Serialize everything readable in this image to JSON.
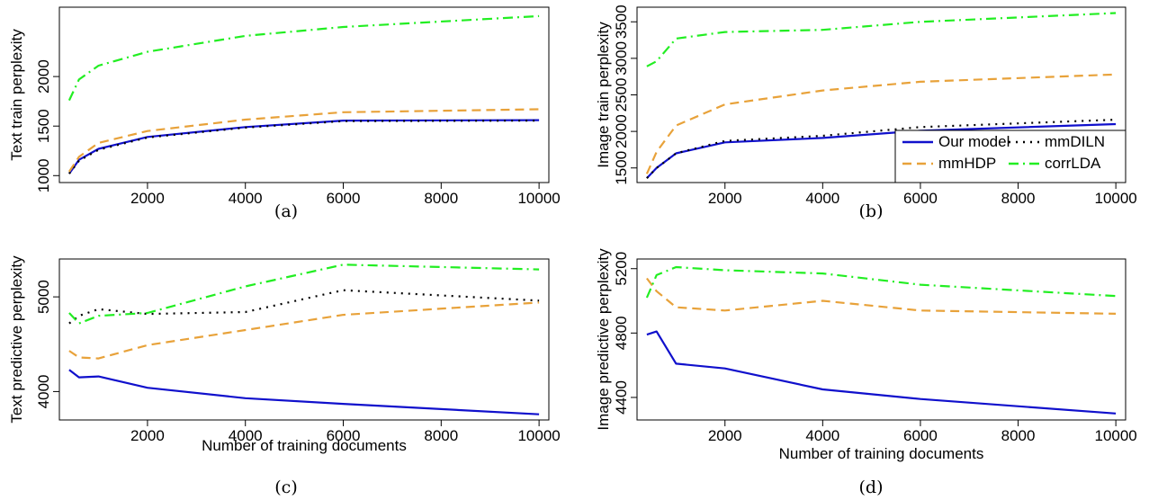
{
  "chart_data": [
    {
      "type": "line",
      "panel": "(a)",
      "caption": "(a)",
      "xlabel": "",
      "ylabel": "Text train perplexity",
      "xlim": [
        200,
        10200
      ],
      "ylim": [
        930,
        2700
      ],
      "xticks": [
        2000,
        4000,
        6000,
        8000,
        10000
      ],
      "yticks": [
        1000,
        1500,
        2000
      ],
      "x": [
        400,
        600,
        1000,
        2000,
        4000,
        6000,
        10000
      ],
      "series": [
        {
          "name": "Our model",
          "color": "#1010cc",
          "values": [
            1020,
            1160,
            1270,
            1390,
            1490,
            1555,
            1560
          ]
        },
        {
          "name": "mmDILN",
          "color": "#000000",
          "values": [
            1020,
            1150,
            1260,
            1385,
            1485,
            1550,
            1555
          ]
        },
        {
          "name": "mmHDP",
          "color": "#e8a23a",
          "values": [
            1040,
            1190,
            1330,
            1450,
            1565,
            1640,
            1670
          ]
        },
        {
          "name": "corrLDA",
          "color": "#22ee22",
          "values": [
            1760,
            1970,
            2110,
            2250,
            2410,
            2500,
            2610
          ]
        }
      ]
    },
    {
      "type": "line",
      "panel": "(b)",
      "caption": "(b)",
      "xlabel": "",
      "ylabel": "Image train perplexity",
      "xlim": [
        200,
        10200
      ],
      "ylim": [
        1300,
        3700
      ],
      "xticks": [
        2000,
        4000,
        6000,
        8000,
        10000
      ],
      "yticks": [
        1500,
        2000,
        2500,
        3000,
        3500
      ],
      "x": [
        400,
        600,
        1000,
        2000,
        4000,
        6000,
        10000
      ],
      "series": [
        {
          "name": "Our model",
          "color": "#1010cc",
          "values": [
            1360,
            1500,
            1700,
            1850,
            1910,
            2010,
            2100
          ]
        },
        {
          "name": "mmDILN",
          "color": "#000000",
          "values": [
            1360,
            1500,
            1700,
            1870,
            1940,
            2060,
            2160
          ]
        },
        {
          "name": "mmHDP",
          "color": "#e8a23a",
          "values": [
            1420,
            1720,
            2080,
            2370,
            2560,
            2680,
            2780
          ]
        },
        {
          "name": "corrLDA",
          "color": "#22ee22",
          "values": [
            2890,
            2960,
            3270,
            3360,
            3390,
            3500,
            3620
          ]
        }
      ],
      "legend": {
        "placement": "bottom-right",
        "entries": [
          {
            "label": "Our model",
            "series": "Our model"
          },
          {
            "label": "mmDILN",
            "series": "mmDILN"
          },
          {
            "label": "mmHDP",
            "series": "mmHDP"
          },
          {
            "label": "corrLDA",
            "series": "corrLDA"
          }
        ]
      }
    },
    {
      "type": "line",
      "panel": "(c)",
      "caption": "(c)",
      "xlabel": "Number of training documents",
      "ylabel": "Text predictive perplexity",
      "xlim": [
        200,
        10200
      ],
      "ylim": [
        3700,
        5400
      ],
      "xticks": [
        2000,
        4000,
        6000,
        8000,
        10000
      ],
      "yticks": [
        4000,
        5000
      ],
      "x": [
        400,
        600,
        1000,
        2000,
        4000,
        6000,
        10000
      ],
      "series": [
        {
          "name": "Our model",
          "color": "#1010cc",
          "values": [
            4230,
            4150,
            4160,
            4040,
            3930,
            3870,
            3760
          ]
        },
        {
          "name": "mmDILN",
          "color": "#000000",
          "values": [
            4720,
            4800,
            4870,
            4820,
            4840,
            5070,
            4960
          ]
        },
        {
          "name": "mmHDP",
          "color": "#e8a23a",
          "values": [
            4430,
            4360,
            4350,
            4490,
            4650,
            4810,
            4940
          ]
        },
        {
          "name": "corrLDA",
          "color": "#22ee22",
          "values": [
            4830,
            4720,
            4800,
            4830,
            5110,
            5340,
            5290
          ]
        }
      ]
    },
    {
      "type": "line",
      "panel": "(d)",
      "caption": "(d)",
      "xlabel": "Number of training documents",
      "ylabel": "Image predictive perplexity",
      "xlim": [
        200,
        10200
      ],
      "ylim": [
        4260,
        5260
      ],
      "xticks": [
        2000,
        4000,
        6000,
        8000,
        10000
      ],
      "yticks": [
        4400,
        4800,
        5200
      ],
      "x": [
        400,
        600,
        1000,
        2000,
        4000,
        6000,
        10000
      ],
      "series": [
        {
          "name": "Our model",
          "color": "#1010cc",
          "values": [
            4790,
            4810,
            4610,
            4580,
            4450,
            4390,
            4300
          ]
        },
        {
          "name": "mmHDP",
          "color": "#e8a23a",
          "values": [
            5140,
            5060,
            4960,
            4940,
            5000,
            4940,
            4920
          ]
        },
        {
          "name": "corrLDA",
          "color": "#22ee22",
          "values": [
            5020,
            5160,
            5210,
            5190,
            5170,
            5100,
            5030
          ]
        }
      ]
    }
  ]
}
